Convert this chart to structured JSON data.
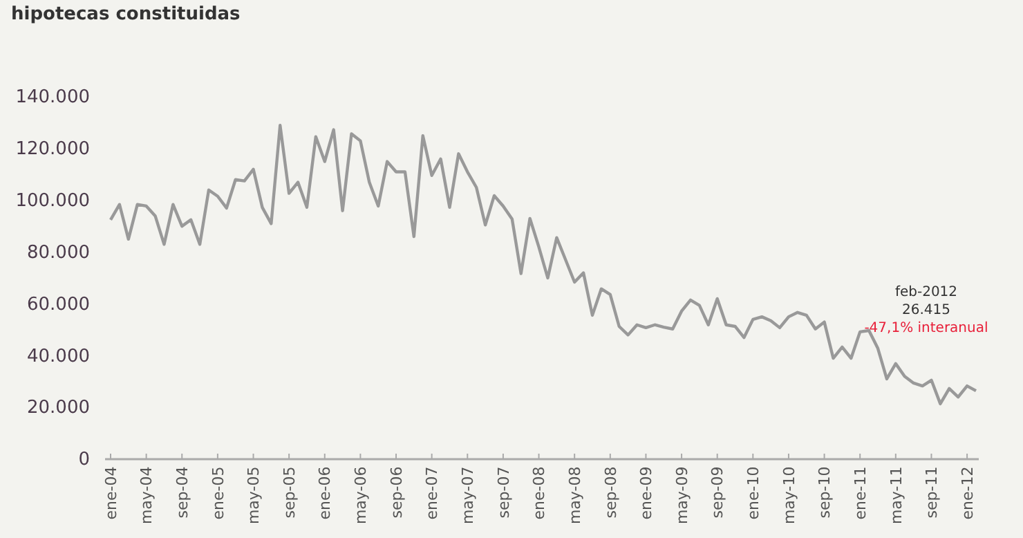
{
  "chart_data": {
    "type": "line",
    "title": "hipotecas constituidas",
    "categories": [
      "ene-04",
      null,
      null,
      null,
      "may-04",
      null,
      null,
      null,
      "sep-04",
      null,
      null,
      null,
      "ene-05",
      null,
      null,
      null,
      "may-05",
      null,
      null,
      null,
      "sep-05",
      null,
      null,
      null,
      "ene-06",
      null,
      null,
      null,
      "may-06",
      null,
      null,
      null,
      "sep-06",
      null,
      null,
      null,
      "ene-07",
      null,
      null,
      null,
      "may-07",
      null,
      null,
      null,
      "sep-07",
      null,
      null,
      null,
      "ene-08",
      null,
      null,
      null,
      "may-08",
      null,
      null,
      null,
      "sep-08",
      null,
      null,
      null,
      "ene-09",
      null,
      null,
      null,
      "may-09",
      null,
      null,
      null,
      "sep-09",
      null,
      null,
      null,
      "ene-10",
      null,
      null,
      null,
      "may-10",
      null,
      null,
      null,
      "sep-10",
      null,
      null,
      null,
      "ene-11",
      null,
      null,
      null,
      "may-11",
      null,
      null,
      null,
      "sep-11",
      null,
      null,
      null,
      "ene-12",
      null
    ],
    "series": [
      {
        "color": "#999999",
        "values": [
          92500,
          98400,
          85000,
          98400,
          97800,
          94000,
          83000,
          98400,
          90000,
          92500,
          83000,
          104000,
          101600,
          97000,
          108000,
          107500,
          112000,
          97300,
          91000,
          129000,
          102700,
          107000,
          97300,
          124600,
          115000,
          127300,
          96000,
          125700,
          123000,
          107000,
          97800,
          115000,
          111000,
          111000,
          86000,
          125000,
          109600,
          116000,
          97300,
          118000,
          111000,
          105000,
          90500,
          101800,
          97800,
          92800,
          71700,
          93000,
          82000,
          70000,
          85600,
          77000,
          68400,
          72000,
          55600,
          65800,
          63600,
          51300,
          48000,
          51900,
          50800,
          51900,
          51000,
          50300,
          57200,
          61500,
          59400,
          51900,
          62000,
          51900,
          51300,
          47000,
          54000,
          55000,
          53500,
          50800,
          55000,
          56700,
          55600,
          50300,
          53000,
          39000,
          43300,
          39000,
          49200,
          49700,
          42800,
          31000,
          36900,
          32000,
          29400,
          28300,
          30500,
          21400,
          27300,
          24000,
          28300,
          26415
        ]
      }
    ],
    "ylim": [
      0,
      140000
    ],
    "yticks": [
      0,
      {
        "value": 20000,
        "label": "20.000"
      },
      {
        "value": 40000,
        "label": "40.000"
      },
      {
        "value": 60000,
        "label": "60.000"
      },
      {
        "value": 80000,
        "label": "80.000"
      },
      {
        "value": 100000,
        "label": "100.000"
      },
      {
        "value": 120000,
        "label": "120.000"
      },
      {
        "value": 140000,
        "label": "140.000"
      }
    ],
    "annotations": [
      "feb-2012",
      "26.415",
      "-47,1% interanual"
    ],
    "grid": false,
    "marker": "none",
    "line_style": "solid"
  }
}
